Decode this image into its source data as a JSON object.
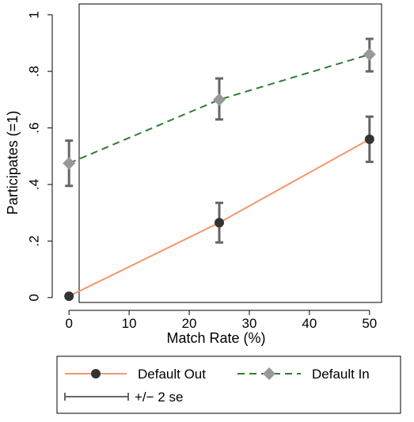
{
  "chart_data": {
    "type": "line",
    "xlabel": "Match Rate (%)",
    "ylabel": "Participates (=1)",
    "xlim": [
      -2,
      52
    ],
    "ylim": [
      -0.02,
      1.03
    ],
    "x_ticks": [
      0,
      10,
      20,
      30,
      40,
      50
    ],
    "x_tick_labels": [
      "0",
      "10",
      "20",
      "30",
      "40",
      "50"
    ],
    "y_ticks": [
      0,
      0.2,
      0.4,
      0.6,
      0.8,
      1
    ],
    "y_tick_labels": [
      "0",
      ".2",
      ".4",
      ".6",
      ".8",
      "1"
    ],
    "grid": false,
    "legend_position": "bottom",
    "series": [
      {
        "name": "Default Out",
        "color": "#f4976c",
        "marker": "circle",
        "marker_color": "#333333",
        "line_style": "solid",
        "x": [
          0,
          25,
          50
        ],
        "y": [
          0.005,
          0.265,
          0.56
        ],
        "se_low": [
          0.0,
          0.195,
          0.48
        ],
        "se_high": [
          0.01,
          0.335,
          0.64
        ]
      },
      {
        "name": "Default In",
        "color": "#2e7d32",
        "marker": "diamond",
        "marker_color": "#999999",
        "line_style": "dashed",
        "x": [
          0,
          25,
          50
        ],
        "y": [
          0.475,
          0.7,
          0.86
        ],
        "se_low": [
          0.395,
          0.63,
          0.8
        ],
        "se_high": [
          0.555,
          0.775,
          0.915
        ]
      }
    ],
    "legend": [
      {
        "label": "Default Out",
        "kind": "series-0"
      },
      {
        "label": "Default In",
        "kind": "series-1"
      },
      {
        "label": "+/− 2 se",
        "kind": "errorbar"
      }
    ],
    "errorbar_color": "#666666"
  }
}
